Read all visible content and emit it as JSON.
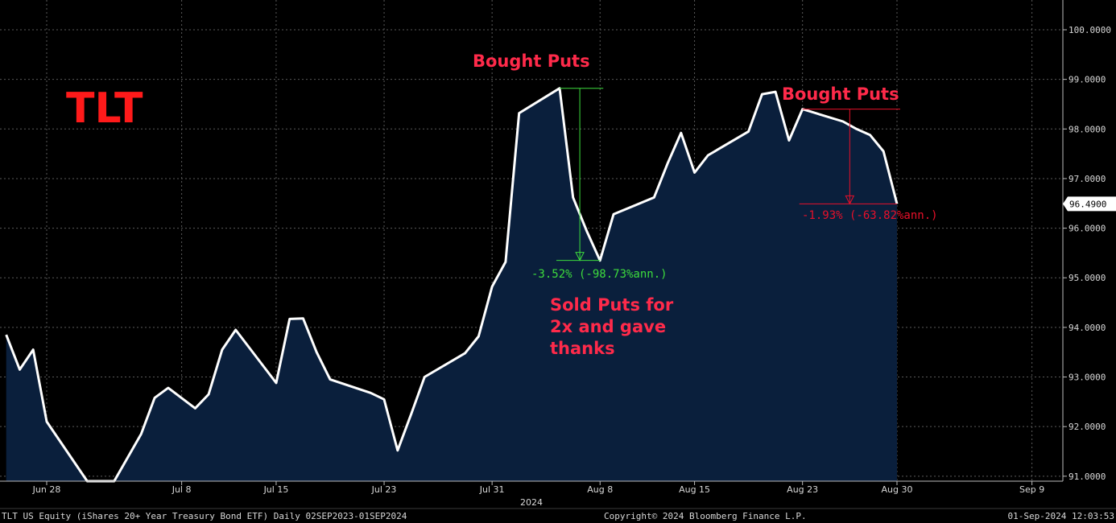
{
  "chart_data": {
    "type": "area",
    "title": "TLT",
    "x_ticks": [
      "Jun 28",
      "Jul 8",
      "Jul 15",
      "Jul 23",
      "Jul 31",
      "Aug 8",
      "Aug 15",
      "Aug 23",
      "Aug 30",
      "Sep 9"
    ],
    "year_label": "2024",
    "y_ticks": [
      "91.0000",
      "92.0000",
      "93.0000",
      "94.0000",
      "95.0000",
      "96.0000",
      "97.0000",
      "98.0000",
      "99.0000",
      "100.0000"
    ],
    "ylim": [
      90.9,
      100.6
    ],
    "last_price_label": "96.4900",
    "grid": true,
    "colors": {
      "background": "#000000",
      "line": "#ffffff",
      "fill": "#0a1f3c",
      "grid": "#5a5a5a",
      "annotation_red": "#ff2a4a",
      "measure_green": "#3ddc3d",
      "measure_red": "#e8102a"
    },
    "series": [
      {
        "values": [
          {
            "date": "2024-06-25",
            "y": 93.85
          },
          {
            "date": "2024-06-26",
            "y": 93.15
          },
          {
            "date": "2024-06-27",
            "y": 93.55
          },
          {
            "date": "2024-06-28",
            "y": 92.1
          },
          {
            "date": "2024-07-01",
            "y": 90.8
          },
          {
            "date": "2024-07-02",
            "y": 90.8
          },
          {
            "date": "2024-07-03",
            "y": 90.8
          },
          {
            "date": "2024-07-05",
            "y": 91.85
          },
          {
            "date": "2024-07-06",
            "y": 92.58
          },
          {
            "date": "2024-07-07",
            "y": 92.78
          },
          {
            "date": "2024-07-09",
            "y": 92.37
          },
          {
            "date": "2024-07-10",
            "y": 92.65
          },
          {
            "date": "2024-07-11",
            "y": 93.55
          },
          {
            "date": "2024-07-12",
            "y": 93.95
          },
          {
            "date": "2024-07-15",
            "y": 92.88
          },
          {
            "date": "2024-07-16",
            "y": 94.17
          },
          {
            "date": "2024-07-17",
            "y": 94.18
          },
          {
            "date": "2024-07-18",
            "y": 93.5
          },
          {
            "date": "2024-07-19",
            "y": 92.95
          },
          {
            "date": "2024-07-22",
            "y": 92.68
          },
          {
            "date": "2024-07-23",
            "y": 92.55
          },
          {
            "date": "2024-07-24",
            "y": 91.52
          },
          {
            "date": "2024-07-25",
            "y": 92.25
          },
          {
            "date": "2024-07-26",
            "y": 93.0
          },
          {
            "date": "2024-07-29",
            "y": 93.48
          },
          {
            "date": "2024-07-30",
            "y": 93.82
          },
          {
            "date": "2024-07-31",
            "y": 94.82
          },
          {
            "date": "2024-08-01",
            "y": 95.32
          },
          {
            "date": "2024-08-02",
            "y": 98.32
          },
          {
            "date": "2024-08-05",
            "y": 98.82
          },
          {
            "date": "2024-08-06",
            "y": 96.62
          },
          {
            "date": "2024-08-07",
            "y": 95.95
          },
          {
            "date": "2024-08-08",
            "y": 95.35
          },
          {
            "date": "2024-08-09",
            "y": 96.28
          },
          {
            "date": "2024-08-12",
            "y": 96.62
          },
          {
            "date": "2024-08-13",
            "y": 97.3
          },
          {
            "date": "2024-08-14",
            "y": 97.92
          },
          {
            "date": "2024-08-15",
            "y": 97.12
          },
          {
            "date": "2024-08-16",
            "y": 97.47
          },
          {
            "date": "2024-08-19",
            "y": 97.95
          },
          {
            "date": "2024-08-20",
            "y": 98.7
          },
          {
            "date": "2024-08-21",
            "y": 98.75
          },
          {
            "date": "2024-08-22",
            "y": 97.77
          },
          {
            "date": "2024-08-23",
            "y": 98.4
          },
          {
            "date": "2024-08-26",
            "y": 98.15
          },
          {
            "date": "2024-08-27",
            "y": 98.0
          },
          {
            "date": "2024-08-28",
            "y": 97.88
          },
          {
            "date": "2024-08-29",
            "y": 97.55
          },
          {
            "date": "2024-08-30",
            "y": 96.49
          }
        ]
      }
    ],
    "annotations": {
      "bought_puts_1": "Bought Puts",
      "bought_puts_2": "Bought Puts",
      "sold_puts_line1": "Sold Puts for",
      "sold_puts_line2": "2x and gave",
      "sold_puts_line3": "thanks",
      "measure_1_text": "-3.52% (-98.73%ann.)",
      "measure_2_text": "-1.93% (-63.82%ann.)"
    },
    "measures": [
      {
        "from_date": "2024-08-05",
        "from_y": 98.82,
        "to_date": "2024-08-08",
        "to_y": 95.35,
        "color": "#3ddc3d"
      },
      {
        "from_date": "2024-08-23",
        "from_y": 98.4,
        "to_date": "2024-08-30",
        "to_y": 96.49,
        "color": "#e8102a"
      }
    ]
  },
  "footer": {
    "left": "TLT US Equity (iShares 20+ Year Treasury Bond ETF)  Daily 02SEP2023-01SEP2024",
    "center": "Copyright© 2024 Bloomberg Finance L.P.",
    "right": "01-Sep-2024 12:03:53"
  }
}
